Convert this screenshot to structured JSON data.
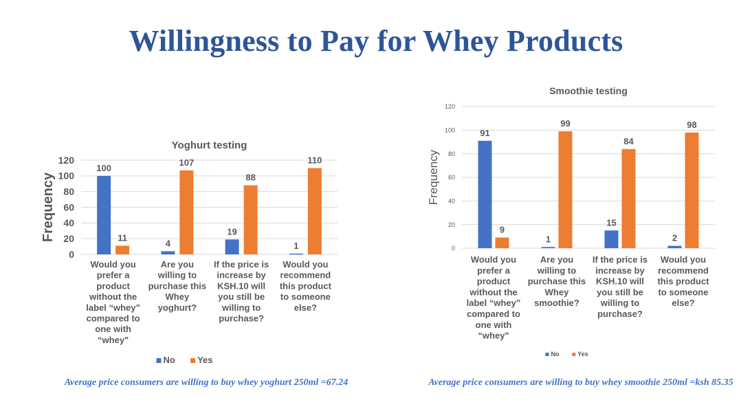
{
  "page": {
    "title": "Willingness to Pay for Whey Products",
    "footnote_left": "Average price consumers are willing to buy whey yoghurt 250ml =67.24",
    "footnote_right": "Average price consumers are willing to buy whey smoothie 250ml =ksh 85.35"
  },
  "colors": {
    "no": "#4472c4",
    "yes": "#ed7d31",
    "title": "#2e5597",
    "text": "#595959",
    "grid": "#d9d9d9"
  },
  "chart_data": [
    {
      "id": "yoghurt",
      "type": "bar",
      "title": "Yoghurt testing",
      "xlabel": "",
      "ylabel": "Frequency",
      "ylim": [
        0,
        120
      ],
      "yticks": [
        0,
        20,
        40,
        60,
        80,
        100,
        120
      ],
      "grid": true,
      "legend": "bottom",
      "categories": [
        [
          "Would you",
          "prefer a",
          "product",
          "without the",
          "label “whey”",
          "compared to",
          "one with",
          "“whey\""
        ],
        [
          "Are you",
          "willing to",
          "purchase this",
          "Whey",
          "yoghurt?"
        ],
        [
          "If the price is",
          "increase by",
          "KSH.10 will",
          "you still be",
          "willing to",
          "purchase?"
        ],
        [
          "Would you",
          "recommend",
          "this product",
          "to someone",
          "else?"
        ]
      ],
      "series": [
        {
          "name": "No",
          "values": [
            100,
            4,
            19,
            1
          ]
        },
        {
          "name": "Yes",
          "values": [
            11,
            107,
            88,
            110
          ]
        }
      ]
    },
    {
      "id": "smoothie",
      "type": "bar",
      "title": "Smoothie testing",
      "xlabel": "",
      "ylabel": "Frequency",
      "ylim": [
        0,
        120
      ],
      "yticks": [
        0,
        20,
        40,
        60,
        80,
        100,
        120
      ],
      "grid": true,
      "legend": "bottom",
      "categories": [
        [
          "Would you",
          "prefer a",
          "product",
          "without the",
          "label “whey”",
          "compared to",
          "one with",
          "“whey\""
        ],
        [
          "Are you",
          "willing to",
          "purchase this",
          "Whey",
          "smoothie?"
        ],
        [
          "If the price is",
          "increase by",
          "KSH.10 will",
          "you still be",
          "willing to",
          "purchase?"
        ],
        [
          "Would you",
          "recommend",
          "this product",
          "to someone",
          "else?"
        ]
      ],
      "series": [
        {
          "name": "No",
          "values": [
            91,
            1,
            15,
            2
          ]
        },
        {
          "name": "Yes",
          "values": [
            9,
            99,
            84,
            98
          ]
        }
      ]
    }
  ]
}
